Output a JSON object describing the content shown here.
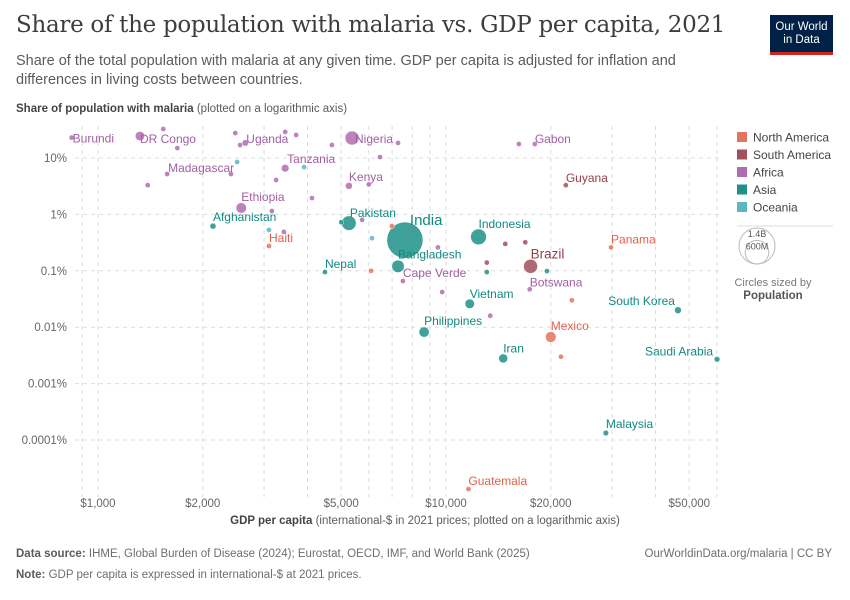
{
  "header": {
    "title": "Share of the population with malaria vs. GDP per capita, 2021",
    "subtitle": "Share of the total population with malaria at any given time. GDP per capita is adjusted for inflation and differences in living costs between countries.",
    "logo_line1": "Our World",
    "logo_line2": "in Data"
  },
  "footer": {
    "source_label": "Data source:",
    "source_text": "IHME, Global Burden of Disease (2024); Eurostat, OECD, IMF, and World Bank (2025)",
    "note_label": "Note:",
    "note_text": "GDP per capita is expressed in international-$ at 2021 prices.",
    "url": "OurWorldinData.org/malaria | CC BY"
  },
  "chart_data": {
    "type": "scatter",
    "title": "Share of the population with malaria vs. GDP per capita, 2021",
    "xlabel_bold": "GDP per capita",
    "xlabel_rest": "(international-$ in 2021 prices; plotted on a logarithmic axis)",
    "ylabel_bold": "Share of population with malaria",
    "ylabel_rest": "(plotted on a logarithmic axis)",
    "x_scale": "log",
    "y_scale": "log",
    "xlim": [
      860,
      61000
    ],
    "ylim": [
      1e-05,
      34
    ],
    "grid": true,
    "x_ticks": [
      {
        "value": 1000,
        "label": "$1,000"
      },
      {
        "value": 2000,
        "label": "$2,000"
      },
      {
        "value": 5000,
        "label": "$5,000"
      },
      {
        "value": 10000,
        "label": "$10,000"
      },
      {
        "value": 20000,
        "label": "$20,000"
      },
      {
        "value": 50000,
        "label": "$50,000"
      }
    ],
    "y_ticks": [
      {
        "value": 10,
        "label": "10%"
      },
      {
        "value": 1,
        "label": "1%"
      },
      {
        "value": 0.1,
        "label": "0.1%"
      },
      {
        "value": 0.01,
        "label": "0.01%"
      },
      {
        "value": 0.001,
        "label": "0.001%"
      },
      {
        "value": 0.0001,
        "label": "0.0001%"
      }
    ],
    "legend_placement": "right",
    "legend": [
      {
        "name": "North America",
        "color": "#e6735f"
      },
      {
        "name": "South America",
        "color": "#a2505b"
      },
      {
        "name": "Africa",
        "color": "#b06cb0"
      },
      {
        "name": "Asia",
        "color": "#1f9188"
      },
      {
        "name": "Oceania",
        "color": "#5ab7c4"
      }
    ],
    "size_legend": {
      "large": "1.4B",
      "small": "600M",
      "caption": "Circles sized by",
      "variable": "Population",
      "large_value": 1400000000,
      "small_value": 600000000
    },
    "points": [
      {
        "label": "Burundi",
        "continent": "Africa",
        "gdp": 840,
        "share": 23,
        "pop": 12600000
      },
      {
        "label": "DR Congo",
        "continent": "Africa",
        "gdp": 1320,
        "share": 24.5,
        "pop": 95000000
      },
      {
        "label": "Uganda",
        "continent": "Africa",
        "gdp": 2650,
        "share": 18.5,
        "pop": 45000000
      },
      {
        "label": "Nigeria",
        "continent": "Africa",
        "gdp": 5370,
        "share": 22.6,
        "pop": 213000000
      },
      {
        "label": "Tanzania",
        "continent": "Africa",
        "gdp": 3450,
        "share": 6.6,
        "pop": 64000000
      },
      {
        "label": "Madagascar",
        "continent": "Africa",
        "gdp": 1580,
        "share": 5.2,
        "pop": 29000000
      },
      {
        "label": "Kenya",
        "continent": "Africa",
        "gdp": 5260,
        "share": 3.2,
        "pop": 53000000
      },
      {
        "label": "Ethiopia",
        "continent": "Africa",
        "gdp": 2580,
        "share": 1.3,
        "pop": 120000000
      },
      {
        "label": "Afghanistan",
        "continent": "Asia",
        "gdp": 2140,
        "share": 0.62,
        "pop": 40000000
      },
      {
        "label": "Haiti",
        "continent": "North America",
        "gdp": 3100,
        "share": 0.275,
        "pop": 11400000
      },
      {
        "label": "Pakistan",
        "continent": "Asia",
        "gdp": 5260,
        "share": 0.7,
        "pop": 231000000
      },
      {
        "label": "India",
        "continent": "Asia",
        "gdp": 7620,
        "share": 0.35,
        "pop": 1410000000
      },
      {
        "label": "Bangladesh",
        "continent": "Asia",
        "gdp": 7280,
        "share": 0.12,
        "pop": 169000000
      },
      {
        "label": "Nepal",
        "continent": "Asia",
        "gdp": 4490,
        "share": 0.095,
        "pop": 30000000
      },
      {
        "label": "Cape Verde",
        "continent": "Africa",
        "gdp": 7520,
        "share": 0.066,
        "pop": 600000
      },
      {
        "label": "Indonesia",
        "continent": "Asia",
        "gdp": 12400,
        "share": 0.4,
        "pop": 274000000
      },
      {
        "label": "Brazil",
        "continent": "South America",
        "gdp": 17500,
        "share": 0.12,
        "pop": 214000000
      },
      {
        "label": "Gabon",
        "continent": "Africa",
        "gdp": 18000,
        "share": 17.7,
        "pop": 2300000
      },
      {
        "label": "Guyana",
        "continent": "South America",
        "gdp": 22100,
        "share": 3.3,
        "pop": 800000
      },
      {
        "label": "Panama",
        "continent": "North America",
        "gdp": 29800,
        "share": 0.26,
        "pop": 4400000
      },
      {
        "label": "Botswana",
        "continent": "Africa",
        "gdp": 17400,
        "share": 0.047,
        "pop": 2600000
      },
      {
        "label": "Vietnam",
        "continent": "Asia",
        "gdp": 11700,
        "share": 0.026,
        "pop": 98000000
      },
      {
        "label": "Philippines",
        "continent": "Asia",
        "gdp": 8650,
        "share": 0.0082,
        "pop": 114000000
      },
      {
        "label": "South Korea",
        "continent": "Asia",
        "gdp": 46400,
        "share": 0.02,
        "pop": 52000000
      },
      {
        "label": "Mexico",
        "continent": "North America",
        "gdp": 20000,
        "share": 0.0067,
        "pop": 126000000
      },
      {
        "label": "Iran",
        "continent": "Asia",
        "gdp": 14600,
        "share": 0.0028,
        "pop": 88000000
      },
      {
        "label": "Saudi Arabia",
        "continent": "Asia",
        "gdp": 60100,
        "share": 0.0027,
        "pop": 36000000
      },
      {
        "label": "Malaysia",
        "continent": "Asia",
        "gdp": 28800,
        "share": 0.000133,
        "pop": 34000000
      },
      {
        "label": "Guatemala",
        "continent": "North America",
        "gdp": 11600,
        "share": 1.35e-05,
        "pop": 17600000
      },
      {
        "continent": "Africa",
        "gdp": 1540,
        "share": 32.7,
        "pop": 6000000
      },
      {
        "continent": "Africa",
        "gdp": 1690,
        "share": 15,
        "pop": 5000000
      },
      {
        "continent": "Africa",
        "gdp": 1390,
        "share": 3.3,
        "pop": 5000000
      },
      {
        "continent": "Africa",
        "gdp": 2480,
        "share": 27.7,
        "pop": 6000000
      },
      {
        "continent": "Africa",
        "gdp": 2560,
        "share": 17,
        "pop": 8000000
      },
      {
        "continent": "Africa",
        "gdp": 3450,
        "share": 29,
        "pop": 6000000
      },
      {
        "continent": "Africa",
        "gdp": 3710,
        "share": 25.6,
        "pop": 6000000
      },
      {
        "continent": "Africa",
        "gdp": 4700,
        "share": 17,
        "pop": 8000000
      },
      {
        "continent": "Africa",
        "gdp": 6460,
        "share": 10.4,
        "pop": 12000000
      },
      {
        "continent": "Africa",
        "gdp": 7280,
        "share": 18.5,
        "pop": 8000000
      },
      {
        "continent": "Africa",
        "gdp": 3250,
        "share": 4.07,
        "pop": 27000000
      },
      {
        "continent": "Africa",
        "gdp": 2410,
        "share": 5.2,
        "pop": 5000000
      },
      {
        "continent": "Africa",
        "gdp": 4120,
        "share": 1.95,
        "pop": 5000000
      },
      {
        "continent": "Africa",
        "gdp": 3160,
        "share": 1.15,
        "pop": 4000000
      },
      {
        "continent": "Africa",
        "gdp": 3420,
        "share": 0.49,
        "pop": 4000000
      },
      {
        "continent": "Africa",
        "gdp": 5740,
        "share": 0.8,
        "pop": 5000000
      },
      {
        "continent": "Africa",
        "gdp": 9480,
        "share": 0.26,
        "pop": 4000000
      },
      {
        "continent": "Africa",
        "gdp": 9750,
        "share": 0.042,
        "pop": 4000000
      },
      {
        "continent": "Africa",
        "gdp": 13400,
        "share": 0.016,
        "pop": 19000000
      },
      {
        "continent": "Africa",
        "gdp": 16200,
        "share": 17.7,
        "pop": 1500000
      },
      {
        "continent": "Africa",
        "gdp": 6000,
        "share": 3.4,
        "pop": 3000000
      },
      {
        "continent": "Oceania",
        "gdp": 2510,
        "share": 8.5,
        "pop": 10000000
      },
      {
        "continent": "Oceania",
        "gdp": 3910,
        "share": 6.9,
        "pop": 700000
      },
      {
        "continent": "Oceania",
        "gdp": 3100,
        "share": 0.53,
        "pop": 300000
      },
      {
        "continent": "Oceania",
        "gdp": 6130,
        "share": 0.38,
        "pop": 900000
      },
      {
        "continent": "Asia",
        "gdp": 13100,
        "share": 0.095,
        "pop": 3000000
      },
      {
        "continent": "Asia",
        "gdp": 5000,
        "share": 0.73,
        "pop": 17000000
      },
      {
        "continent": "Asia",
        "gdp": 19500,
        "share": 0.099,
        "pop": 22000000
      },
      {
        "continent": "South America",
        "gdp": 14800,
        "share": 0.3,
        "pop": 11000000
      },
      {
        "continent": "South America",
        "gdp": 16900,
        "share": 0.32,
        "pop": 28000000
      },
      {
        "continent": "South America",
        "gdp": 13100,
        "share": 0.14,
        "pop": 1500000
      },
      {
        "continent": "North America",
        "gdp": 6990,
        "share": 0.62,
        "pop": 3000000
      },
      {
        "continent": "North America",
        "gdp": 6090,
        "share": 0.1,
        "pop": 3000000
      },
      {
        "continent": "North America",
        "gdp": 23000,
        "share": 0.03,
        "pop": 3000000
      },
      {
        "continent": "North America",
        "gdp": 21400,
        "share": 0.003,
        "pop": 3000000
      }
    ]
  }
}
